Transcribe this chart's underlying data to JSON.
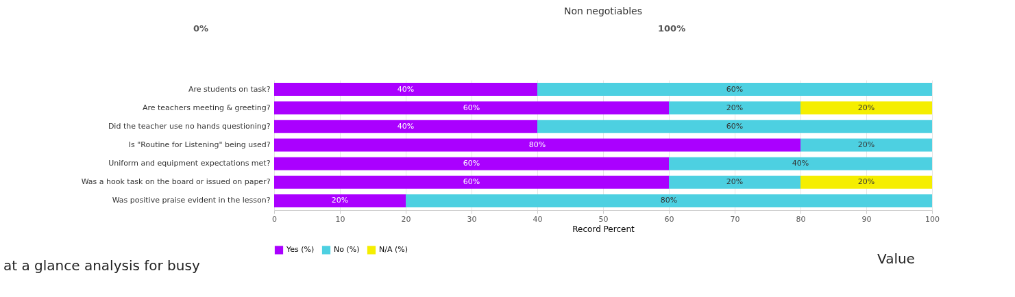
{
  "chart_data": {
    "type": "bar",
    "orientation": "horizontal",
    "stacked": true,
    "title": "Non negotiables",
    "xlabel": "Record Percent",
    "categories": [
      "Are students on task?",
      "Are teachers meeting & greeting?",
      "Did the teacher use no hands questioning?",
      "Is \"Routine for Listening\" being used?",
      "Uniform and equipment expectations met?",
      "Was a hook task on the board or issued on paper?",
      "Was positive praise evident in the lesson?"
    ],
    "series": [
      {
        "name": "Yes (%)",
        "color": "#aa00ff",
        "values": [
          40,
          60,
          40,
          80,
          60,
          60,
          20
        ],
        "value_labels": [
          "40%",
          "60%",
          "40%",
          "80%",
          "60%",
          "60%",
          "20%"
        ]
      },
      {
        "name": "No (%)",
        "color": "#4dd0e1",
        "values": [
          60,
          20,
          60,
          20,
          40,
          20,
          80
        ],
        "value_labels": [
          "60%",
          "20%",
          "60%",
          "20%",
          "40%",
          "20%",
          "80%"
        ]
      },
      {
        "name": "N/A (%)",
        "color": "#f5ee00",
        "values": [
          null,
          20,
          null,
          null,
          null,
          20,
          null
        ],
        "value_labels": [
          null,
          "20%",
          null,
          null,
          null,
          "20%",
          null
        ]
      }
    ],
    "xlim": [
      0,
      100
    ],
    "xticks": [
      0,
      10,
      20,
      30,
      40,
      50,
      60,
      70,
      80,
      90,
      100
    ],
    "grid": "x",
    "legend": "bottom",
    "annotations": [
      "0%",
      "100%",
      "at a glance analysis for busy",
      "Value"
    ]
  }
}
